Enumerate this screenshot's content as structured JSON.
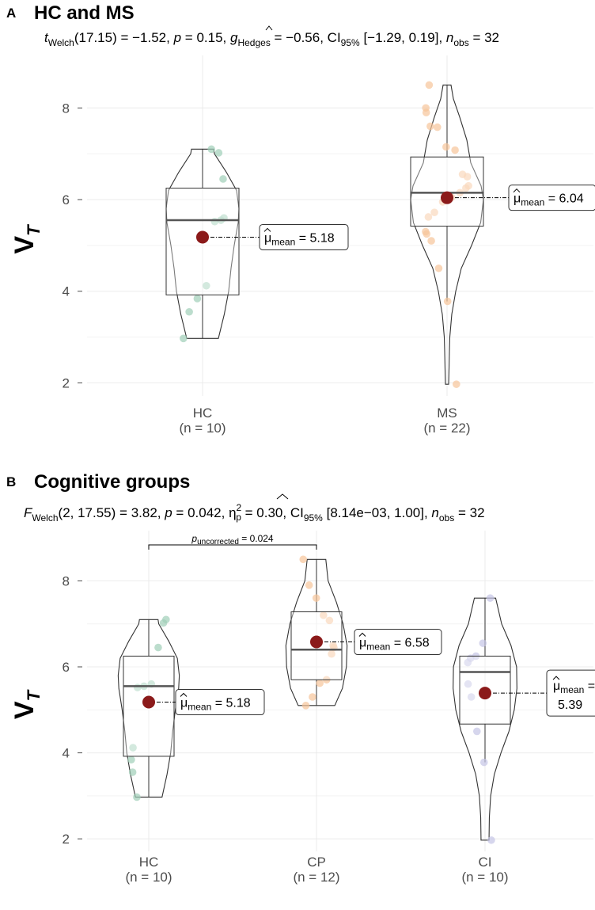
{
  "chart_data": [
    {
      "panel": "A",
      "type": "violin",
      "title": "HC and MS",
      "stats": {
        "t_welch_df": "17.15",
        "t": "−1.52",
        "p": "0.15",
        "g_hedges": "−0.56",
        "ci": "[−1.29, 0.19]",
        "n_obs": "32"
      },
      "ylabel": "V",
      "ylabel_sub": "T",
      "ylim": [
        1.8,
        8.8
      ],
      "yticks": [
        2,
        4,
        6,
        8
      ],
      "groups": [
        {
          "name": "HC",
          "n_label": "(n = 10)",
          "color": "#9FCFB8",
          "mean": 5.18,
          "mean_label": "5.18",
          "median": 5.55,
          "q1": 3.92,
          "q3": 6.25,
          "whisker_low": 2.97,
          "whisker_high": 7.1,
          "points": [
            7.1,
            7.02,
            6.45,
            5.6,
            5.55,
            5.52,
            4.12,
            3.84,
            3.55,
            2.97
          ],
          "violin_profile": [
            [
              2.97,
              0.4
            ],
            [
              3.5,
              0.55
            ],
            [
              4.0,
              0.66
            ],
            [
              4.5,
              0.72
            ],
            [
              5.0,
              0.8
            ],
            [
              5.5,
              0.9
            ],
            [
              5.8,
              0.92
            ],
            [
              6.2,
              0.86
            ],
            [
              6.6,
              0.6
            ],
            [
              7.0,
              0.3
            ],
            [
              7.1,
              0.28
            ]
          ]
        },
        {
          "name": "MS",
          "n_label": "(n = 22)",
          "color": "#F6C49A",
          "mean": 6.04,
          "mean_label": "6.04",
          "median": 6.15,
          "q1": 5.42,
          "q3": 6.93,
          "whisker_low": 3.78,
          "whisker_high": 8.5,
          "points": [
            8.5,
            8.0,
            7.9,
            7.6,
            7.58,
            7.15,
            7.08,
            6.55,
            6.5,
            6.3,
            6.25,
            6.15,
            6.05,
            5.95,
            5.72,
            5.62,
            5.3,
            5.25,
            5.1,
            4.5,
            3.78,
            1.97
          ],
          "violin_profile": [
            [
              1.97,
              0.04
            ],
            [
              2.3,
              0.05
            ],
            [
              2.7,
              0.06
            ],
            [
              3.0,
              0.07
            ],
            [
              3.5,
              0.12
            ],
            [
              4.0,
              0.22
            ],
            [
              4.5,
              0.36
            ],
            [
              5.0,
              0.62
            ],
            [
              5.5,
              0.85
            ],
            [
              6.0,
              0.92
            ],
            [
              6.3,
              0.86
            ],
            [
              6.8,
              0.6
            ],
            [
              7.3,
              0.5
            ],
            [
              7.8,
              0.32
            ],
            [
              8.2,
              0.16
            ],
            [
              8.5,
              0.1
            ]
          ]
        }
      ]
    },
    {
      "panel": "B",
      "type": "violin",
      "title": "Cognitive groups",
      "stats": {
        "f_welch_df": "2, 17.55",
        "f": "3.82",
        "p": "0.042",
        "eta2p": "0.30",
        "ci": "[8.14e−03, 1.00]",
        "n_obs": "32"
      },
      "pairwise": {
        "from": "HC",
        "to": "CP",
        "label": "0.024"
      },
      "ylabel": "V",
      "ylabel_sub": "T",
      "ylim": [
        1.8,
        8.8
      ],
      "yticks": [
        2,
        4,
        6,
        8
      ],
      "groups": [
        {
          "name": "HC",
          "n_label": "(n = 10)",
          "color": "#9FCFB8",
          "mean": 5.18,
          "mean_label": "5.18",
          "median": 5.55,
          "q1": 3.92,
          "q3": 6.25,
          "whisker_low": 2.97,
          "whisker_high": 7.1,
          "points": [
            7.1,
            7.02,
            6.45,
            5.6,
            5.55,
            5.52,
            4.12,
            3.84,
            3.55,
            2.97
          ],
          "violin_profile": [
            [
              2.97,
              0.4
            ],
            [
              3.5,
              0.55
            ],
            [
              4.0,
              0.66
            ],
            [
              4.5,
              0.72
            ],
            [
              5.0,
              0.8
            ],
            [
              5.5,
              0.9
            ],
            [
              5.8,
              0.92
            ],
            [
              6.2,
              0.86
            ],
            [
              6.6,
              0.6
            ],
            [
              7.0,
              0.3
            ],
            [
              7.1,
              0.28
            ]
          ]
        },
        {
          "name": "CP",
          "n_label": "(n = 12)",
          "color": "#F6C49A",
          "mean": 6.58,
          "mean_label": "6.58",
          "median": 6.4,
          "q1": 5.7,
          "q3": 7.28,
          "whisker_low": 5.1,
          "whisker_high": 8.5,
          "points": [
            8.5,
            7.9,
            7.6,
            7.2,
            7.08,
            6.5,
            6.45,
            6.3,
            5.7,
            5.62,
            5.3,
            5.1
          ],
          "violin_profile": [
            [
              5.1,
              0.55
            ],
            [
              5.5,
              0.78
            ],
            [
              6.0,
              0.9
            ],
            [
              6.5,
              0.92
            ],
            [
              7.0,
              0.8
            ],
            [
              7.5,
              0.6
            ],
            [
              8.0,
              0.35
            ],
            [
              8.5,
              0.28
            ]
          ]
        },
        {
          "name": "CI",
          "n_label": "(n = 10)",
          "color": "#C5C4E6",
          "mean": 5.39,
          "mean_label": "5.39",
          "median": 5.88,
          "q1": 4.67,
          "q3": 6.25,
          "whisker_low": 3.78,
          "whisker_high": 7.6,
          "points": [
            7.6,
            6.55,
            6.25,
            6.2,
            6.1,
            5.6,
            5.3,
            4.5,
            3.78,
            1.97
          ],
          "violin_profile": [
            [
              1.97,
              0.12
            ],
            [
              2.5,
              0.13
            ],
            [
              3.0,
              0.17
            ],
            [
              3.5,
              0.28
            ],
            [
              4.0,
              0.48
            ],
            [
              4.5,
              0.72
            ],
            [
              5.0,
              0.88
            ],
            [
              5.5,
              0.96
            ],
            [
              6.0,
              0.95
            ],
            [
              6.5,
              0.78
            ],
            [
              7.0,
              0.5
            ],
            [
              7.6,
              0.32
            ]
          ]
        }
      ]
    }
  ]
}
